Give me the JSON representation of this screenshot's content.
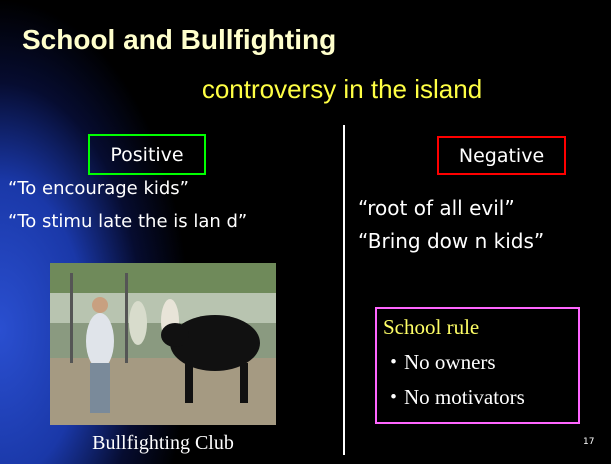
{
  "slide": {
    "title": "School and Bullfighting",
    "subtitle": "controversy in the island",
    "positive": {
      "label": "Positive",
      "quotes": [
        "“To encourage kids”",
        "“To stimu late the is lan d”"
      ],
      "caption": "Bullfighting Club"
    },
    "negative": {
      "label": "Negative",
      "quotes": [
        "“root of all evil”",
        "“Bring dow n kids”"
      ]
    },
    "rule": {
      "title": "School rule",
      "items": [
        "・No owners",
        "・No motivators"
      ]
    },
    "page_number": "17"
  }
}
